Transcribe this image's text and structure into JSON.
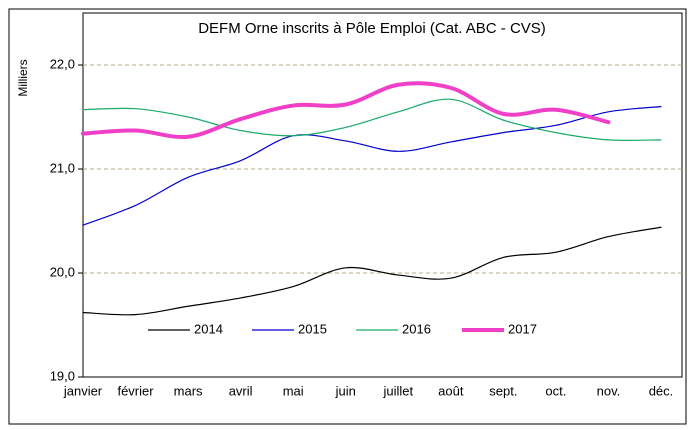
{
  "chart_data": {
    "type": "line",
    "title": "DEFM Orne inscrits à Pôle Emploi  (Cat. ABC - CVS)",
    "y_label": "Milliers",
    "categories": [
      "janvier",
      "février",
      "mars",
      "avril",
      "mai",
      "juin",
      "juillet",
      "août",
      "sept.",
      "oct.",
      "nov.",
      "déc."
    ],
    "series": [
      {
        "name": "2014",
        "color": "#000000",
        "width": 1.2,
        "values": [
          19.62,
          19.6,
          19.68,
          19.76,
          19.87,
          20.05,
          19.98,
          19.95,
          20.15,
          20.2,
          20.35,
          20.44
        ]
      },
      {
        "name": "2015",
        "color": "#0000cc",
        "width": 1.2,
        "values": [
          20.46,
          20.65,
          20.92,
          21.08,
          21.32,
          21.27,
          21.17,
          21.26,
          21.35,
          21.42,
          21.55,
          21.6
        ]
      },
      {
        "name": "2016",
        "color": "#1aaa6a",
        "width": 1.2,
        "values": [
          21.57,
          21.58,
          21.5,
          21.37,
          21.32,
          21.4,
          21.55,
          21.67,
          21.47,
          21.35,
          21.28,
          21.28
        ]
      },
      {
        "name": "2017",
        "color": "#f040c8",
        "width": 4,
        "values": [
          21.34,
          21.37,
          21.31,
          21.48,
          21.61,
          21.62,
          21.81,
          21.78,
          21.53,
          21.57,
          21.45,
          null
        ]
      }
    ],
    "ylim": [
      19,
      22
    ],
    "yticks": [
      {
        "value": 19,
        "label": "19,0"
      },
      {
        "value": 20,
        "label": "20,0"
      },
      {
        "value": 21,
        "label": "21,0"
      },
      {
        "value": 22,
        "label": "22,0"
      }
    ],
    "grid": true,
    "legend": "bottom"
  }
}
